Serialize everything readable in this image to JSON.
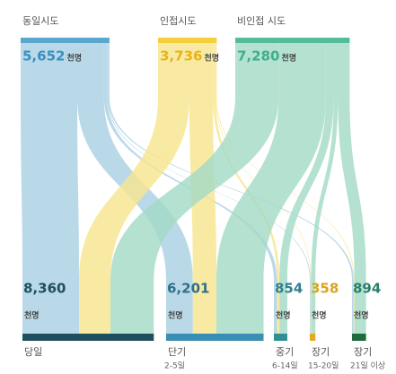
{
  "chart_data": {
    "type": "sankey",
    "unit": "천명",
    "sources": [
      {
        "name": "동일시도",
        "value": 5652,
        "value_label": "5,652",
        "color": "#5aa6cc",
        "link_color": "#a9cfe2",
        "text_color": "#3a8fc0"
      },
      {
        "name": "인접시도",
        "value": 3736,
        "value_label": "3,736",
        "color": "#f5cf3d",
        "link_color": "#f8e58c",
        "text_color": "#e8b31a"
      },
      {
        "name": "비인접 시도",
        "value": 7280,
        "value_label": "7,280",
        "color": "#55bc9b",
        "link_color": "#a2dac6",
        "text_color": "#3bb08a"
      }
    ],
    "targets": [
      {
        "name": "당일",
        "value": 8360,
        "value_label": "8,360",
        "color": "#1f4f5c",
        "text_color": "#1f4f5c"
      },
      {
        "name": "단기",
        "sublabel": "2-5일",
        "value": 6201,
        "value_label": "6,201",
        "color": "#3a8db3",
        "text_color": "#2f6f8a"
      },
      {
        "name": "중기",
        "sublabel": "6-14일",
        "value": 854,
        "color": "#2f8f95",
        "text_color": "#2f7f8f"
      },
      {
        "name": "장기",
        "sublabel": "15-20일",
        "value": 358,
        "color": "#e0ab22",
        "text_color": "#d9a520"
      },
      {
        "name": "장기",
        "sublabel": "21일 이상",
        "value": 894,
        "color": "#1f6b40",
        "text_color": "#2a7f6a"
      }
    ],
    "links": [
      {
        "source": 0,
        "target": 0,
        "value": 3600
      },
      {
        "source": 0,
        "target": 1,
        "value": 1700
      },
      {
        "source": 0,
        "target": 2,
        "value": 200
      },
      {
        "source": 0,
        "target": 3,
        "value": 50
      },
      {
        "source": 0,
        "target": 4,
        "value": 102
      },
      {
        "source": 1,
        "target": 0,
        "value": 2000
      },
      {
        "source": 1,
        "target": 1,
        "value": 1500
      },
      {
        "source": 1,
        "target": 2,
        "value": 150
      },
      {
        "source": 1,
        "target": 3,
        "value": 36
      },
      {
        "source": 1,
        "target": 4,
        "value": 50
      },
      {
        "source": 2,
        "target": 0,
        "value": 2760
      },
      {
        "source": 2,
        "target": 1,
        "value": 3001
      },
      {
        "source": 2,
        "target": 2,
        "value": 504
      },
      {
        "source": 2,
        "target": 3,
        "value": 272
      },
      {
        "source": 2,
        "target": 4,
        "value": 742
      }
    ]
  }
}
